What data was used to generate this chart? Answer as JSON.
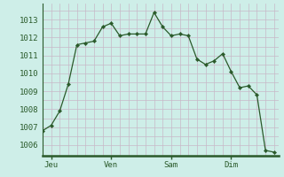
{
  "background_color": "#ceeee8",
  "grid_color": "#c8b8c8",
  "grid_color_major": "#d8b8c8",
  "line_color": "#2a5a2a",
  "marker_color": "#2a5a2a",
  "x_values": [
    0,
    1,
    2,
    3,
    4,
    5,
    6,
    7,
    8,
    9,
    10,
    11,
    12,
    13,
    14,
    15,
    16,
    17,
    18,
    19,
    20,
    21,
    22,
    23,
    24,
    25,
    26,
    27
  ],
  "y_values": [
    1006.8,
    1007.1,
    1007.9,
    1009.4,
    1011.6,
    1011.7,
    1011.8,
    1012.6,
    1012.8,
    1012.1,
    1012.2,
    1012.2,
    1012.2,
    1013.4,
    1012.6,
    1012.1,
    1012.2,
    1012.1,
    1010.8,
    1010.5,
    1010.7,
    1011.1,
    1010.1,
    1009.2,
    1009.3,
    1008.8,
    1005.7,
    1005.6
  ],
  "xtick_positions": [
    1,
    8,
    15,
    22
  ],
  "xtick_labels": [
    "Jeu",
    "Ven",
    "Sam",
    "Dim"
  ],
  "ytick_positions": [
    1006,
    1007,
    1008,
    1009,
    1010,
    1011,
    1012,
    1013
  ],
  "ylim": [
    1005.4,
    1013.9
  ],
  "xlim": [
    0,
    27.5
  ],
  "spine_color": "#2a5a2a",
  "vline_color": "#9a7a9a",
  "tick_label_color": "#2a5a2a",
  "tick_fontsize": 6.5
}
